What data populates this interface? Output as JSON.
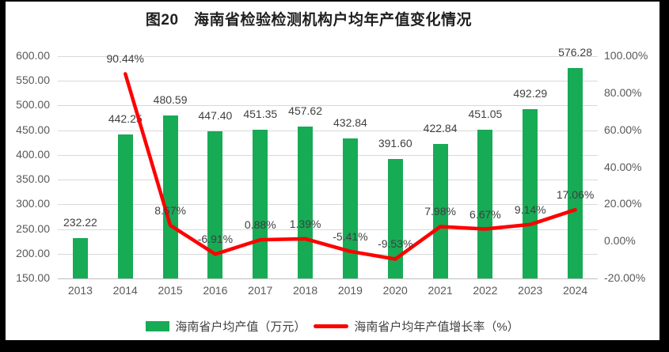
{
  "colors": {
    "bar_green": "#17ab55",
    "line_red": "#fe0000",
    "gridline": "#d9d9d9",
    "axis_text": "#595959",
    "label_text": "#404040",
    "background": "#ffffff",
    "frame": "#000000"
  },
  "chart_data": {
    "type": "bar",
    "subtype": "combo-bar-line",
    "title": "图20　海南省检验检测机构户均年产值变化情况",
    "categories": [
      "2013",
      "2014",
      "2015",
      "2016",
      "2017",
      "2018",
      "2019",
      "2020",
      "2021",
      "2022",
      "2023",
      "2024"
    ],
    "series": [
      {
        "name": "海南省户均产值（万元）",
        "type": "bar",
        "axis": "left",
        "color": "#17ab55",
        "values": [
          232.22,
          442.25,
          480.59,
          447.4,
          451.35,
          457.62,
          432.84,
          391.6,
          422.84,
          451.05,
          492.29,
          576.28
        ],
        "labels": [
          "232.22",
          "442.25",
          "480.59",
          "447.40",
          "451.35",
          "457.62",
          "432.84",
          "391.60",
          "422.84",
          "451.05",
          "492.29",
          "576.28"
        ]
      },
      {
        "name": "海南省户均年产值增长率（%）",
        "type": "line",
        "axis": "right",
        "color": "#fe0000",
        "values": [
          null,
          90.44,
          8.67,
          -6.91,
          0.88,
          1.39,
          -5.41,
          -9.53,
          7.98,
          6.67,
          9.14,
          17.06
        ],
        "labels": [
          "",
          "90.44%",
          "8.67%",
          "-6.91%",
          "0.88%",
          "1.39%",
          "-5.41%",
          "-9.53%",
          "7.98%",
          "6.67%",
          "9.14%",
          "17.06%"
        ]
      }
    ],
    "left_axis": {
      "min": 150,
      "max": 600,
      "step": 50,
      "ticks": [
        "600.00",
        "550.00",
        "500.00",
        "450.00",
        "400.00",
        "350.00",
        "300.00",
        "250.00",
        "200.00",
        "150.00"
      ]
    },
    "right_axis": {
      "min": -20,
      "max": 100,
      "step": 20,
      "ticks": [
        "100.00%",
        "80.00%",
        "60.00%",
        "40.00%",
        "20.00%",
        "0.00%",
        "-20.00%"
      ]
    },
    "grid": "horizontal-only",
    "legend_position": "bottom"
  }
}
